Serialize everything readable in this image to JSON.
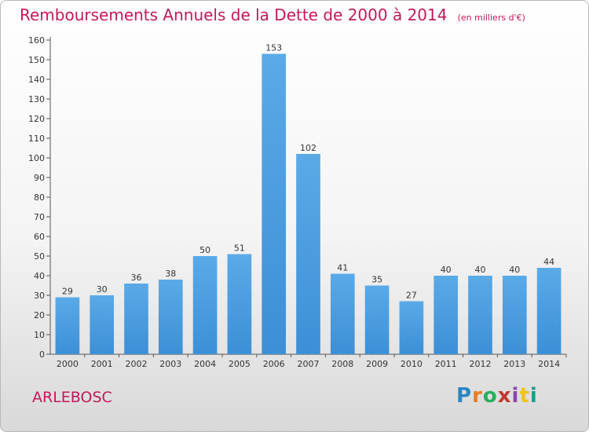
{
  "title": "Remboursements Annuels de la Dette de 2000 à 2014",
  "subtitle": "(en milliers d'€)",
  "place": "ARLEBOSC",
  "logo": {
    "letters": [
      "P",
      "r",
      "o",
      "x",
      "i",
      "t",
      "i"
    ],
    "colors": [
      "#2e86c1",
      "#e67e22",
      "#27ae60",
      "#c0392b",
      "#8e44ad",
      "#f1c40f",
      "#16a085"
    ]
  },
  "colors": {
    "bar": "#3d8fd6",
    "bar_light": "#5aaae8",
    "title": "#c2185b"
  },
  "chart_data": {
    "type": "bar",
    "categories": [
      "2000",
      "2001",
      "2002",
      "2003",
      "2004",
      "2005",
      "2006",
      "2007",
      "2008",
      "2009",
      "2010",
      "2011",
      "2012",
      "2013",
      "2014"
    ],
    "values": [
      29,
      30,
      36,
      38,
      50,
      51,
      153,
      102,
      41,
      35,
      27,
      40,
      40,
      40,
      44
    ],
    "ylim": [
      0,
      160
    ],
    "yticks": [
      0,
      10,
      20,
      30,
      40,
      50,
      60,
      70,
      80,
      90,
      100,
      110,
      120,
      130,
      140,
      150,
      160
    ],
    "grid": false,
    "data_labels": true
  }
}
